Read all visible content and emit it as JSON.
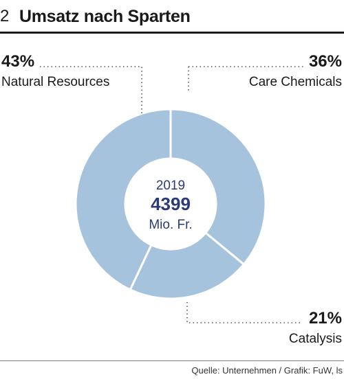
{
  "header": {
    "figure_number": "2",
    "title": "Umsatz nach Sparten"
  },
  "chart_data": {
    "type": "donut",
    "center": {
      "year": "2019",
      "total": "4399",
      "unit": "Mio. Fr."
    },
    "slices": [
      {
        "name": "Care Chemicals",
        "value": 36,
        "label": "36%"
      },
      {
        "name": "Catalysis",
        "value": 21,
        "label": "21%"
      },
      {
        "name": "Natural Resources",
        "value": 43,
        "label": "43%"
      }
    ],
    "colors": {
      "slice": "#a6c3de",
      "separator": "#ffffff",
      "text": "#1a1a1a",
      "center_text": "#2b3a7a"
    }
  },
  "footer": {
    "source": "Quelle: Unternehmen / Grafik: FuW, ls"
  }
}
